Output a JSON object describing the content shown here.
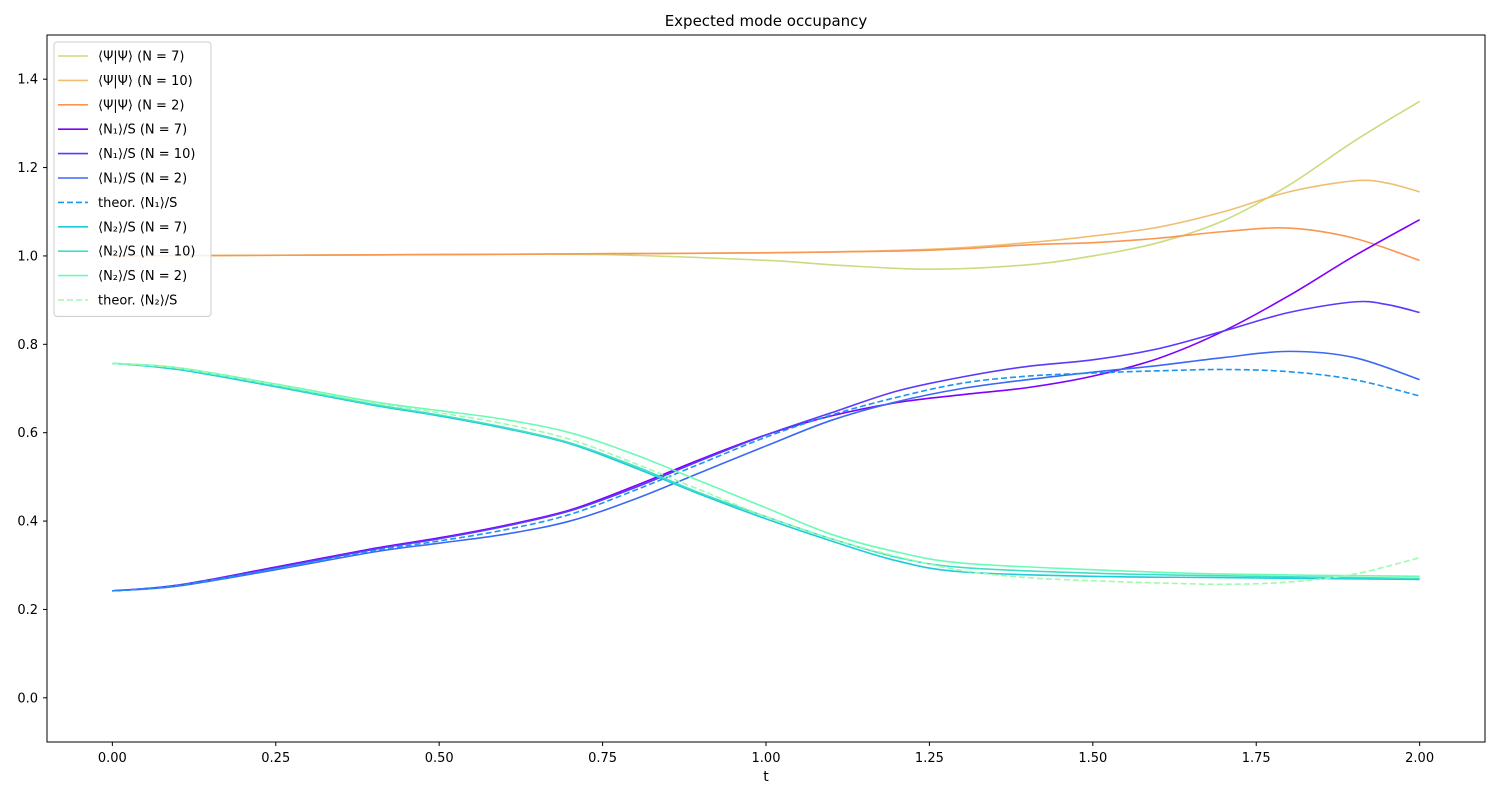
{
  "chart_data": {
    "type": "line",
    "title": "Expected mode occupancy",
    "xlabel": "t",
    "ylabel": "",
    "xlim": [
      -0.1,
      2.1
    ],
    "ylim": [
      -0.1,
      1.5
    ],
    "xticks": [
      "0.00",
      "0.25",
      "0.50",
      "0.75",
      "1.00",
      "1.25",
      "1.50",
      "1.75",
      "2.00"
    ],
    "yticks": [
      "0.0",
      "0.2",
      "0.4",
      "0.6",
      "0.8",
      "1.0",
      "1.2",
      "1.4"
    ],
    "grid": false,
    "legend_position": "upper-left",
    "series": [
      {
        "name": "⟨Ψ|Ψ⟩ (N = 7)",
        "color": "#c9dc7e",
        "dash": false,
        "points": [
          [
            0,
            1.0
          ],
          [
            0.5,
            1.003
          ],
          [
            0.75,
            1.003
          ],
          [
            1.0,
            0.99
          ],
          [
            1.1,
            0.98
          ],
          [
            1.25,
            0.97
          ],
          [
            1.4,
            0.98
          ],
          [
            1.5,
            1.0
          ],
          [
            1.6,
            1.03
          ],
          [
            1.7,
            1.08
          ],
          [
            1.8,
            1.16
          ],
          [
            1.9,
            1.26
          ],
          [
            2.0,
            1.35
          ]
        ]
      },
      {
        "name": "⟨Ψ|Ψ⟩ (N = 10)",
        "color": "#f0be72",
        "dash": false,
        "points": [
          [
            0,
            1.0
          ],
          [
            0.5,
            1.003
          ],
          [
            0.75,
            1.005
          ],
          [
            1.0,
            1.007
          ],
          [
            1.25,
            1.015
          ],
          [
            1.4,
            1.03
          ],
          [
            1.5,
            1.045
          ],
          [
            1.6,
            1.065
          ],
          [
            1.7,
            1.1
          ],
          [
            1.8,
            1.145
          ],
          [
            1.9,
            1.17
          ],
          [
            1.95,
            1.165
          ],
          [
            2.0,
            1.145
          ]
        ]
      },
      {
        "name": "⟨Ψ|Ψ⟩ (N = 2)",
        "color": "#f99652",
        "dash": false,
        "points": [
          [
            0,
            1.0
          ],
          [
            0.5,
            1.003
          ],
          [
            0.75,
            1.005
          ],
          [
            1.0,
            1.007
          ],
          [
            1.25,
            1.013
          ],
          [
            1.4,
            1.025
          ],
          [
            1.5,
            1.03
          ],
          [
            1.6,
            1.04
          ],
          [
            1.7,
            1.055
          ],
          [
            1.8,
            1.063
          ],
          [
            1.9,
            1.04
          ],
          [
            2.0,
            0.99
          ]
        ]
      },
      {
        "name": "⟨N₁⟩/S (N = 7)",
        "color": "#8000ff",
        "dash": false,
        "points": [
          [
            0,
            0.242
          ],
          [
            0.1,
            0.255
          ],
          [
            0.25,
            0.296
          ],
          [
            0.4,
            0.338
          ],
          [
            0.5,
            0.362
          ],
          [
            0.6,
            0.39
          ],
          [
            0.7,
            0.425
          ],
          [
            0.8,
            0.48
          ],
          [
            0.9,
            0.54
          ],
          [
            1.0,
            0.595
          ],
          [
            1.1,
            0.638
          ],
          [
            1.2,
            0.668
          ],
          [
            1.3,
            0.686
          ],
          [
            1.4,
            0.702
          ],
          [
            1.5,
            0.728
          ],
          [
            1.6,
            0.768
          ],
          [
            1.7,
            0.83
          ],
          [
            1.8,
            0.91
          ],
          [
            1.9,
            1.0
          ],
          [
            2.0,
            1.082
          ]
        ]
      },
      {
        "name": "⟨N₁⟩/S (N = 10)",
        "color": "#5c39fb",
        "dash": false,
        "points": [
          [
            0,
            0.242
          ],
          [
            0.1,
            0.255
          ],
          [
            0.25,
            0.294
          ],
          [
            0.4,
            0.336
          ],
          [
            0.5,
            0.36
          ],
          [
            0.6,
            0.388
          ],
          [
            0.7,
            0.423
          ],
          [
            0.8,
            0.476
          ],
          [
            0.9,
            0.537
          ],
          [
            1.0,
            0.595
          ],
          [
            1.1,
            0.645
          ],
          [
            1.2,
            0.694
          ],
          [
            1.3,
            0.726
          ],
          [
            1.4,
            0.75
          ],
          [
            1.5,
            0.765
          ],
          [
            1.6,
            0.79
          ],
          [
            1.7,
            0.83
          ],
          [
            1.8,
            0.872
          ],
          [
            1.9,
            0.896
          ],
          [
            1.95,
            0.89
          ],
          [
            2.0,
            0.872
          ]
        ]
      },
      {
        "name": "⟨N₁⟩/S (N = 2)",
        "color": "#3b68f5",
        "dash": false,
        "points": [
          [
            0,
            0.242
          ],
          [
            0.1,
            0.253
          ],
          [
            0.25,
            0.29
          ],
          [
            0.4,
            0.33
          ],
          [
            0.5,
            0.35
          ],
          [
            0.6,
            0.37
          ],
          [
            0.7,
            0.4
          ],
          [
            0.8,
            0.45
          ],
          [
            0.9,
            0.51
          ],
          [
            1.0,
            0.57
          ],
          [
            1.1,
            0.628
          ],
          [
            1.2,
            0.67
          ],
          [
            1.3,
            0.7
          ],
          [
            1.4,
            0.72
          ],
          [
            1.5,
            0.737
          ],
          [
            1.6,
            0.752
          ],
          [
            1.7,
            0.77
          ],
          [
            1.8,
            0.784
          ],
          [
            1.9,
            0.77
          ],
          [
            2.0,
            0.72
          ]
        ]
      },
      {
        "name": "theor. ⟨N₁⟩/S",
        "color": "#1a96f0",
        "dash": true,
        "points": [
          [
            0,
            0.242
          ],
          [
            0.1,
            0.254
          ],
          [
            0.25,
            0.292
          ],
          [
            0.4,
            0.333
          ],
          [
            0.5,
            0.355
          ],
          [
            0.6,
            0.38
          ],
          [
            0.7,
            0.415
          ],
          [
            0.8,
            0.47
          ],
          [
            0.9,
            0.53
          ],
          [
            1.0,
            0.59
          ],
          [
            1.1,
            0.64
          ],
          [
            1.2,
            0.68
          ],
          [
            1.3,
            0.712
          ],
          [
            1.4,
            0.728
          ],
          [
            1.5,
            0.735
          ],
          [
            1.6,
            0.74
          ],
          [
            1.7,
            0.743
          ],
          [
            1.8,
            0.738
          ],
          [
            1.9,
            0.72
          ],
          [
            2.0,
            0.683
          ]
        ]
      },
      {
        "name": "⟨N₂⟩/S (N = 7)",
        "color": "#1ecbda",
        "dash": false,
        "points": [
          [
            0,
            0.757
          ],
          [
            0.1,
            0.743
          ],
          [
            0.25,
            0.704
          ],
          [
            0.4,
            0.662
          ],
          [
            0.5,
            0.638
          ],
          [
            0.6,
            0.61
          ],
          [
            0.7,
            0.575
          ],
          [
            0.8,
            0.52
          ],
          [
            0.9,
            0.46
          ],
          [
            1.0,
            0.405
          ],
          [
            1.1,
            0.355
          ],
          [
            1.2,
            0.31
          ],
          [
            1.3,
            0.285
          ],
          [
            1.5,
            0.275
          ],
          [
            1.7,
            0.272
          ],
          [
            2.0,
            0.268
          ]
        ]
      },
      {
        "name": "⟨N₂⟩/S (N = 10)",
        "color": "#3de0c7",
        "dash": false,
        "points": [
          [
            0,
            0.757
          ],
          [
            0.1,
            0.745
          ],
          [
            0.25,
            0.706
          ],
          [
            0.4,
            0.664
          ],
          [
            0.5,
            0.64
          ],
          [
            0.6,
            0.612
          ],
          [
            0.7,
            0.577
          ],
          [
            0.8,
            0.524
          ],
          [
            0.9,
            0.463
          ],
          [
            1.0,
            0.41
          ],
          [
            1.1,
            0.36
          ],
          [
            1.2,
            0.318
          ],
          [
            1.3,
            0.295
          ],
          [
            1.5,
            0.282
          ],
          [
            1.7,
            0.276
          ],
          [
            2.0,
            0.27
          ]
        ]
      },
      {
        "name": "⟨N₂⟩/S (N = 2)",
        "color": "#6bfbb5",
        "dash": false,
        "points": [
          [
            0,
            0.757
          ],
          [
            0.1,
            0.747
          ],
          [
            0.25,
            0.71
          ],
          [
            0.4,
            0.67
          ],
          [
            0.5,
            0.65
          ],
          [
            0.6,
            0.63
          ],
          [
            0.7,
            0.6
          ],
          [
            0.8,
            0.55
          ],
          [
            0.9,
            0.49
          ],
          [
            1.0,
            0.43
          ],
          [
            1.1,
            0.37
          ],
          [
            1.2,
            0.33
          ],
          [
            1.3,
            0.305
          ],
          [
            1.5,
            0.29
          ],
          [
            1.7,
            0.28
          ],
          [
            2.0,
            0.275
          ]
        ]
      },
      {
        "name": "theor. ⟨N₂⟩/S",
        "color": "#9dfbac",
        "dash": true,
        "points": [
          [
            0,
            0.757
          ],
          [
            0.1,
            0.746
          ],
          [
            0.25,
            0.708
          ],
          [
            0.4,
            0.667
          ],
          [
            0.5,
            0.645
          ],
          [
            0.6,
            0.62
          ],
          [
            0.7,
            0.585
          ],
          [
            0.8,
            0.53
          ],
          [
            0.9,
            0.47
          ],
          [
            1.0,
            0.41
          ],
          [
            1.1,
            0.36
          ],
          [
            1.2,
            0.32
          ],
          [
            1.3,
            0.288
          ],
          [
            1.4,
            0.272
          ],
          [
            1.5,
            0.265
          ],
          [
            1.6,
            0.26
          ],
          [
            1.7,
            0.257
          ],
          [
            1.8,
            0.262
          ],
          [
            1.9,
            0.28
          ],
          [
            2.0,
            0.317
          ]
        ]
      }
    ]
  }
}
